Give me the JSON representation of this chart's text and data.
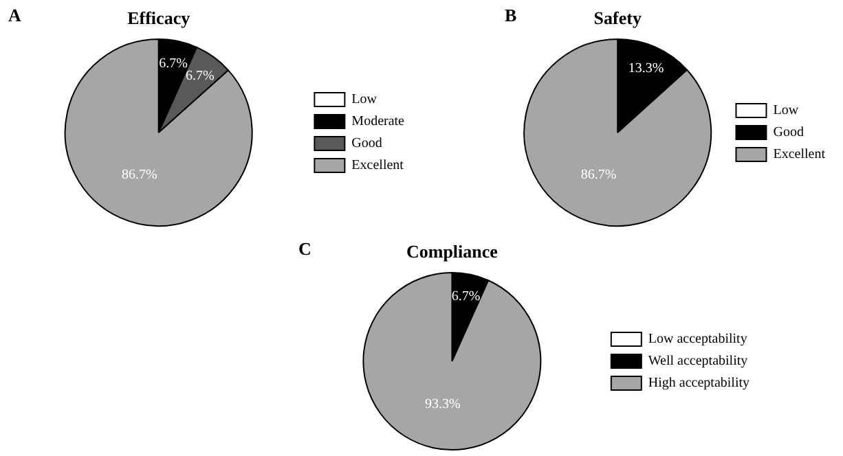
{
  "chart_data": [
    {
      "type": "pie",
      "title": "Efficacy",
      "annotations": [
        "A"
      ],
      "categories": [
        "Low",
        "Moderate",
        "Good",
        "Excellent"
      ],
      "values": [
        0,
        6.7,
        6.7,
        86.7
      ],
      "colors": [
        "#ffffff",
        "#000000",
        "#595959",
        "#a6a6a6"
      ],
      "value_labels": [
        null,
        "6.7%",
        "6.7%",
        "86.7%"
      ],
      "legend": "right"
    },
    {
      "type": "pie",
      "title": "Safety",
      "annotations": [
        "B"
      ],
      "categories": [
        "Low",
        "Good",
        "Excellent"
      ],
      "values": [
        0,
        13.3,
        86.7
      ],
      "colors": [
        "#ffffff",
        "#000000",
        "#a6a6a6"
      ],
      "value_labels": [
        null,
        "13.3%",
        "86.7%"
      ],
      "legend": "right"
    },
    {
      "type": "pie",
      "title": "Compliance",
      "annotations": [
        "C"
      ],
      "categories": [
        "Low acceptability",
        "Well acceptability",
        "High acceptability"
      ],
      "values": [
        0,
        6.7,
        93.3
      ],
      "colors": [
        "#ffffff",
        "#000000",
        "#a6a6a6"
      ],
      "value_labels": [
        null,
        "6.7%",
        "93.3%"
      ],
      "legend": "right"
    }
  ]
}
